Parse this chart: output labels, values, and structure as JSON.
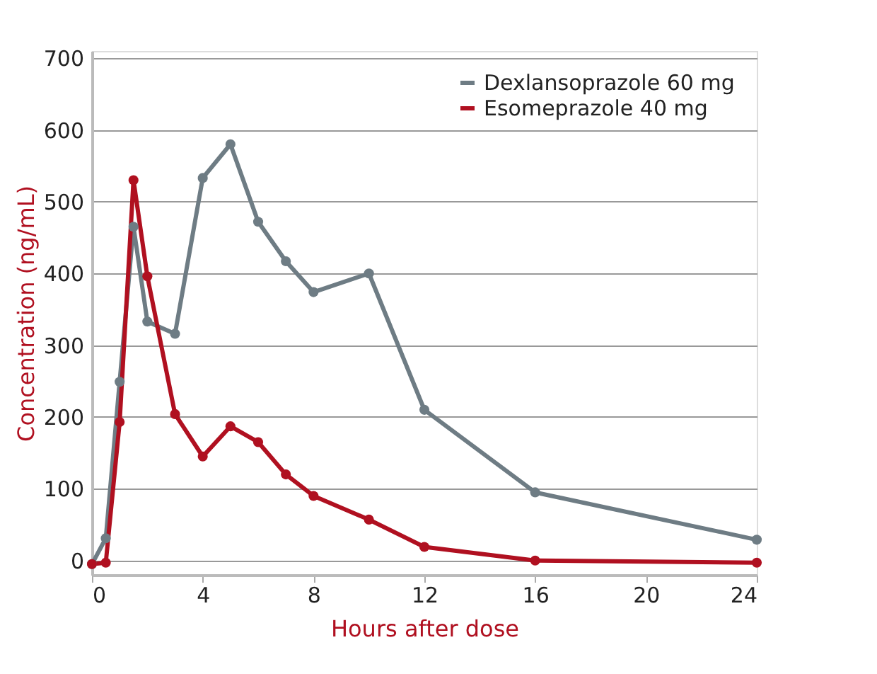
{
  "chart_data": {
    "type": "line",
    "xlabel": "Hours after dose",
    "ylabel": "Concentration (ng/mL)",
    "x": [
      0,
      0.5,
      1,
      1.5,
      2,
      3,
      4,
      5,
      6,
      7,
      8,
      10,
      12,
      16,
      24
    ],
    "series": [
      {
        "name": "Dexlansoprazole 60 mg",
        "color": "#6e7c84",
        "values": [
          -5,
          31,
          249,
          465,
          333,
          316,
          533,
          580,
          472,
          417,
          374,
          400,
          210,
          95,
          29
        ]
      },
      {
        "name": "Esomeprazole 40 mg",
        "color": "#b01020",
        "values": [
          -5,
          -3,
          193,
          530,
          396,
          204,
          145,
          187,
          165,
          120,
          90,
          57,
          19,
          0,
          -3
        ]
      }
    ],
    "xlim": [
      0,
      24
    ],
    "xticks": [
      0,
      4,
      8,
      12,
      16,
      20,
      24
    ],
    "ylim": [
      -20,
      710
    ],
    "yticks": [
      0,
      100,
      200,
      300,
      400,
      500,
      600,
      700
    ],
    "grid": "y",
    "legend": "top right",
    "marker": "circle",
    "line_style": "solid"
  }
}
